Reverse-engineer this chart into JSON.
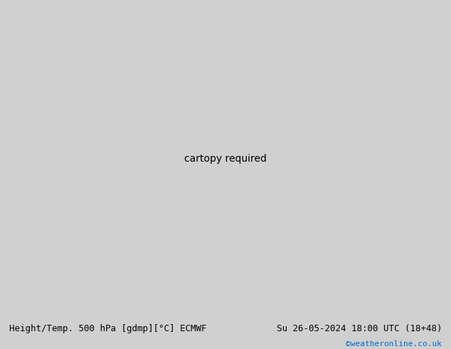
{
  "title_left": "Height/Temp. 500 hPa [gdmp][°C] ECMWF",
  "title_right": "Su 26-05-2024 18:00 UTC (18+48)",
  "credit": "©weatheronline.co.uk",
  "background_color": "#d0d0d0",
  "land_color": "#c8e8a0",
  "ocean_color": "#d0d0d0",
  "coast_color": "#888888",
  "z500_color": "#000000",
  "temp_orange_color": "#e08000",
  "temp_green_color": "#80c040",
  "temp_cyan_color": "#00a8b8",
  "temp_red_color": "#ff0000",
  "temp_blue_color": "#4488ff",
  "bottom_bar_color": "#ffffff",
  "credit_color": "#0066cc",
  "font_size_title": 9,
  "font_size_credit": 8,
  "lon_min": 90,
  "lon_max": 210,
  "lat_min": -70,
  "lat_max": -5
}
